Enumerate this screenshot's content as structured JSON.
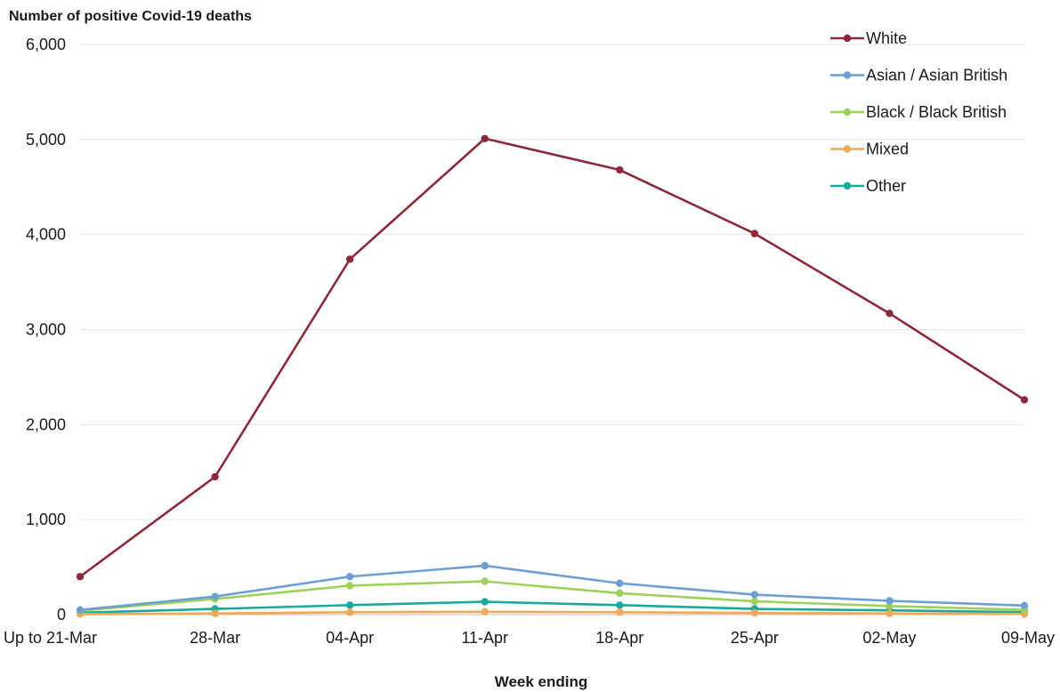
{
  "chart_data": {
    "type": "line",
    "title": "Number of positive Covid-19 deaths",
    "xlabel": "Week ending",
    "ylabel": "",
    "ylim": [
      0,
      6000
    ],
    "yticks": [
      0,
      1000,
      2000,
      3000,
      4000,
      5000,
      6000
    ],
    "ytick_labels": [
      "0",
      "1,000",
      "2,000",
      "3,000",
      "4,000",
      "5,000",
      "6,000"
    ],
    "grid": true,
    "legend_position": "top-right",
    "categories": [
      "Up to 21-Mar",
      "28-Mar",
      "04-Apr",
      "11-Apr",
      "18-Apr",
      "25-Apr",
      "02-May",
      "09-May"
    ],
    "series": [
      {
        "name": "White",
        "color": "#8b2a3a",
        "values": [
          400,
          1450,
          3740,
          5010,
          4680,
          4010,
          3170,
          2260
        ]
      },
      {
        "name": "Asian / Asian British",
        "color": "#6e9fd3",
        "values": [
          50,
          190,
          400,
          515,
          330,
          210,
          145,
          95
        ]
      },
      {
        "name": "Black / Black British",
        "color": "#9cd15a",
        "values": [
          40,
          165,
          305,
          350,
          225,
          140,
          90,
          50
        ]
      },
      {
        "name": "Mixed",
        "color": "#f0a85a",
        "values": [
          5,
          12,
          25,
          30,
          25,
          18,
          12,
          8
        ]
      },
      {
        "name": "Other",
        "color": "#1aaa9b",
        "values": [
          20,
          60,
          100,
          135,
          100,
          60,
          45,
          25
        ]
      }
    ]
  }
}
